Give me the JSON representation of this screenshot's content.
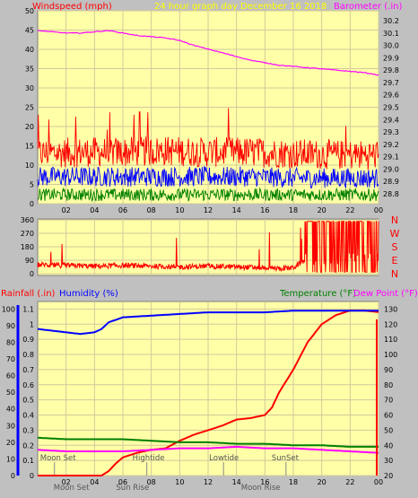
{
  "header": {
    "windspeed_label": "Windspeed (mph)",
    "title": "24 hour graph day   December 16 2018",
    "barometer_label": "Barometer (.in)"
  },
  "lower_header": {
    "rainfall_label": "Rainfall (.in)",
    "humidity_label": "Humidity (%)",
    "temperature_label": "Temperature (°F)",
    "dewpoint_label": "Dew Point (°F)"
  },
  "colors": {
    "background": "#c0c0c0",
    "plot_bg": "#ffffa8",
    "grid": "#d2c89a",
    "windspeed": "#ff0000",
    "windgust_avg": "#0000ff",
    "wind_min": "#008000",
    "barometer": "#ff00ff",
    "title": "#ffff00",
    "rainfall": "#ff0000",
    "humidity": "#0000ff",
    "temperature": "#008000",
    "dewpoint": "#ff00ff",
    "ann": "#555555"
  },
  "chart_data": [
    {
      "type": "line",
      "name": "wind-barometer",
      "title": "24 hour graph day   December 16 2018",
      "xlabel": "",
      "x_ticks": [
        "02",
        "04",
        "06",
        "08",
        "10",
        "12",
        "14",
        "16",
        "18",
        "20",
        "22",
        "00"
      ],
      "grid": true,
      "left_axis": {
        "label": "Windspeed (mph)",
        "ticks": [
          0,
          5,
          10,
          15,
          20,
          25,
          30,
          35,
          40,
          45,
          50
        ],
        "range": [
          0,
          50
        ]
      },
      "right_axis": {
        "label": "Barometer (.in)",
        "ticks": [
          28.8,
          28.9,
          29.0,
          29.1,
          29.2,
          29.3,
          29.4,
          29.5,
          29.6,
          29.7,
          29.8,
          29.9,
          30.0,
          30.1,
          30.2
        ],
        "range": [
          28.72,
          30.28
        ]
      },
      "series": [
        {
          "name": "Barometer (.in)",
          "axis": "right",
          "x": [
            0,
            1,
            2,
            3,
            4,
            5,
            6,
            7,
            8,
            9,
            10,
            11,
            12,
            13,
            14,
            15,
            16,
            17,
            18,
            19,
            20,
            21,
            22,
            23,
            24
          ],
          "values": [
            30.12,
            30.11,
            30.1,
            30.1,
            30.11,
            30.12,
            30.1,
            30.08,
            30.07,
            30.06,
            30.04,
            30.0,
            29.97,
            29.94,
            29.91,
            29.88,
            29.86,
            29.84,
            29.83,
            29.82,
            29.81,
            29.8,
            29.79,
            29.78,
            29.76
          ]
        },
        {
          "name": "Wind gust",
          "axis": "left",
          "x": [
            0,
            3,
            6,
            9,
            12,
            15,
            18,
            21,
            24
          ],
          "values": [
            13,
            14,
            14,
            15,
            14,
            14,
            13,
            12,
            12
          ],
          "range_low": 7,
          "range_high": 19
        },
        {
          "name": "Wind average",
          "axis": "left",
          "x": [
            0,
            3,
            6,
            9,
            12,
            15,
            18,
            21,
            24
          ],
          "values": [
            7,
            7,
            7,
            7,
            7,
            7,
            6,
            6,
            6
          ],
          "range_low": 3,
          "range_high": 11
        },
        {
          "name": "Wind minimum",
          "axis": "left",
          "x": [
            0,
            3,
            6,
            9,
            12,
            15,
            18,
            21,
            24
          ],
          "values": [
            2,
            2,
            2,
            2,
            2,
            2,
            2,
            2,
            2
          ],
          "range_low": 0,
          "range_high": 5
        }
      ]
    },
    {
      "type": "scatter",
      "name": "wind-direction",
      "x_ticks": [
        "02",
        "04",
        "06",
        "08",
        "10",
        "12",
        "14",
        "16",
        "18",
        "20",
        "22",
        "00"
      ],
      "y_ticks": [
        0,
        90,
        180,
        270,
        360
      ],
      "ylim": [
        0,
        360
      ],
      "compass_labels": [
        "N",
        "W",
        "S",
        "E",
        "N"
      ],
      "series": [
        {
          "name": "Wind direction",
          "x": [
            0,
            2,
            4,
            6,
            8,
            10,
            12,
            14,
            16,
            17,
            18,
            19,
            20,
            21,
            22,
            23,
            24
          ],
          "values": [
            60,
            55,
            50,
            55,
            50,
            45,
            50,
            45,
            40,
            35,
            40,
            100,
            200,
            300,
            250,
            320,
            300
          ]
        }
      ]
    },
    {
      "type": "line",
      "name": "rain-humidity-temp",
      "x_ticks": [
        "02",
        "04",
        "06",
        "08",
        "10",
        "12",
        "14",
        "16",
        "18",
        "20",
        "22",
        "00"
      ],
      "grid": true,
      "rain_axis": {
        "label": "Rainfall (.in)",
        "ticks": [
          0,
          0.1,
          0.2,
          0.3,
          0.4,
          0.5,
          0.6,
          0.7,
          0.8,
          0.9,
          1,
          1.1
        ],
        "range": [
          0,
          1.15
        ]
      },
      "humidity_axis": {
        "label": "Humidity (%)",
        "ticks": [
          0,
          10,
          20,
          30,
          40,
          50,
          60,
          70,
          80,
          90,
          100
        ],
        "range": [
          0,
          104.5
        ]
      },
      "temperature_axis": {
        "label": "Temperature (°F)",
        "ticks": [
          20,
          30,
          40,
          50,
          60,
          70,
          80,
          90,
          100,
          110,
          120,
          130
        ],
        "range": [
          20,
          135
        ]
      },
      "series": [
        {
          "name": "Rainfall (.in)",
          "axis": "rain",
          "x": [
            0,
            4.5,
            5,
            5.5,
            6,
            7,
            8,
            9,
            10,
            11,
            12,
            13,
            14,
            15,
            16,
            16.5,
            17,
            18,
            19,
            20,
            21,
            22,
            23,
            24
          ],
          "values": [
            0,
            0,
            0.03,
            0.08,
            0.12,
            0.15,
            0.17,
            0.18,
            0.23,
            0.27,
            0.3,
            0.33,
            0.37,
            0.38,
            0.4,
            0.45,
            0.55,
            0.7,
            0.88,
            1.0,
            1.06,
            1.09,
            1.09,
            1.08
          ]
        },
        {
          "name": "Humidity (%)",
          "axis": "humidity",
          "x": [
            0,
            1,
            2,
            3,
            4,
            4.5,
            5,
            6,
            8,
            10,
            12,
            14,
            16,
            18,
            20,
            22,
            24
          ],
          "values": [
            88,
            87,
            86,
            85,
            86,
            88,
            92,
            95,
            96,
            97,
            98,
            98,
            98,
            99,
            99,
            99,
            99
          ]
        },
        {
          "name": "Temperature (°F)",
          "axis": "temperature",
          "x": [
            0,
            2,
            4,
            6,
            8,
            10,
            12,
            14,
            16,
            18,
            20,
            22,
            24
          ],
          "values": [
            45,
            44,
            44,
            44,
            43,
            42,
            42,
            41,
            41,
            40,
            40,
            39,
            39
          ]
        },
        {
          "name": "Dew Point (°F)",
          "axis": "temperature",
          "x": [
            0,
            2,
            4,
            6,
            8,
            10,
            12,
            14,
            16,
            18,
            20,
            22,
            24
          ],
          "values": [
            37,
            36,
            36,
            36,
            37,
            38,
            38,
            39,
            38,
            38,
            37,
            36,
            35
          ]
        }
      ],
      "annotations": [
        {
          "label": "Moon Set",
          "x": 0.3,
          "placement": "bottom"
        },
        {
          "label": "Moon Set",
          "x": 0.3,
          "placement": "below-axis"
        },
        {
          "label": "Sun Rise",
          "x": 4.7,
          "placement": "below-axis"
        },
        {
          "label": "Hightide",
          "x": 6.8,
          "placement": "bottom"
        },
        {
          "label": "Lowtide",
          "x": 12.2,
          "placement": "bottom"
        },
        {
          "label": "Moon Rise",
          "x": 13.5,
          "placement": "below-axis"
        },
        {
          "label": "SunSet",
          "x": 16.6,
          "placement": "bottom"
        }
      ]
    }
  ]
}
